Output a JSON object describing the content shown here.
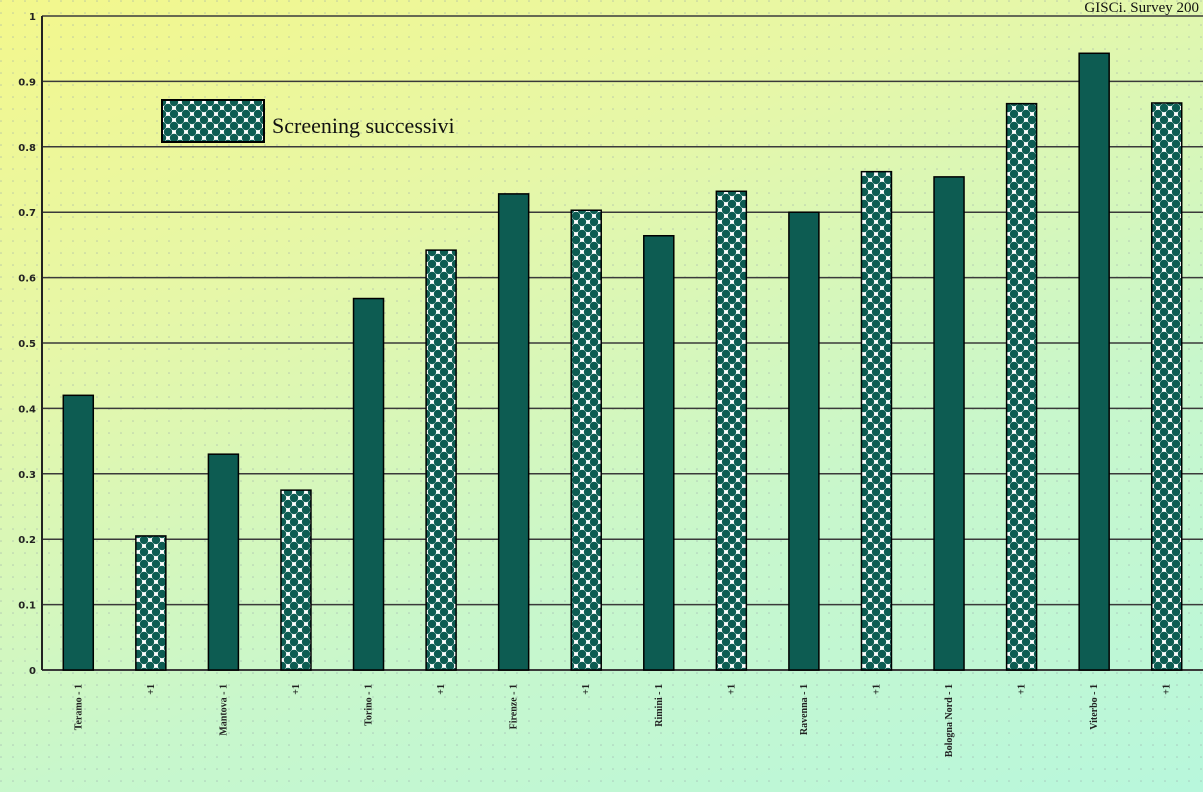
{
  "source_note": "GISCi. Survey 200",
  "chart_data": {
    "type": "bar",
    "categories": [
      "Teramo - 1",
      "+1",
      "Mantova - 1",
      "+1",
      "Torino - 1",
      "+1",
      "Firenze - 1",
      "+1",
      "Rimini - 1",
      "+1",
      "Ravenna - 1",
      "+1",
      "Bologna Nord - 1",
      "+1",
      "Viterbo - 1",
      "+1"
    ],
    "values": [
      0.42,
      0.205,
      0.33,
      0.275,
      0.568,
      0.642,
      0.728,
      0.703,
      0.664,
      0.732,
      0.7,
      0.762,
      0.754,
      0.866,
      0.943,
      0.867
    ],
    "bar_styles": [
      "solid",
      "pattern",
      "solid",
      "pattern",
      "solid",
      "pattern",
      "solid",
      "pattern",
      "solid",
      "pattern",
      "solid",
      "pattern",
      "solid",
      "pattern",
      "solid",
      "pattern"
    ],
    "ylim": [
      0,
      1
    ],
    "y_ticks": [
      0,
      0.1,
      0.2,
      0.3,
      0.4,
      0.5,
      0.6,
      0.7,
      0.8,
      0.9,
      1
    ],
    "y_tick_labels": [
      "0",
      "0.1",
      "0.2",
      "0.3",
      "0.4",
      "0.5",
      "0.6",
      "0.7",
      "0.8",
      "0.9",
      "1"
    ],
    "legend": {
      "label": "Screening successivi",
      "placement": "top-left"
    },
    "colors": {
      "solid": "#0d5c52",
      "pattern": "#0d5c52",
      "pattern_bg": "#ffffff",
      "grid": "#3a3a3a"
    }
  }
}
